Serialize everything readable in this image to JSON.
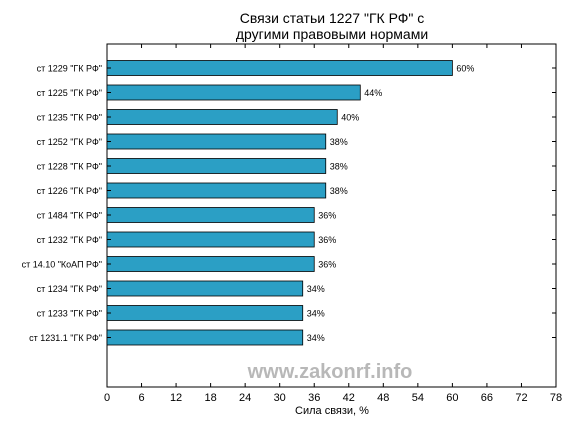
{
  "chart_data": {
    "type": "bar",
    "orientation": "horizontal",
    "title_lines": [
      "Связи статьи 1227 \"ГК РФ\" с",
      "другими правовыми нормами"
    ],
    "xlabel": "Сила связи, %",
    "ylabel": "",
    "xlim": [
      0,
      78
    ],
    "xticks": [
      "0",
      "6",
      "12",
      "18",
      "24",
      "30",
      "36",
      "42",
      "48",
      "54",
      "60",
      "66",
      "72",
      "78"
    ],
    "grid": false,
    "bar_color": "#2b9fc5",
    "categories": [
      "ст 1229 \"ГК РФ\"",
      "ст 1225 \"ГК РФ\"",
      "ст 1235 \"ГК РФ\"",
      "ст 1252 \"ГК РФ\"",
      "ст 1228 \"ГК РФ\"",
      "ст 1226 \"ГК РФ\"",
      "ст 1484 \"ГК РФ\"",
      "ст 1232 \"ГК РФ\"",
      "ст 14.10 \"КоАП РФ\"",
      "ст 1234 \"ГК РФ\"",
      "ст 1233 \"ГК РФ\"",
      "ст 1231.1 \"ГК РФ\""
    ],
    "values": [
      60,
      44,
      40,
      38,
      38,
      38,
      36,
      36,
      36,
      34,
      34,
      34
    ],
    "value_labels": [
      "60%",
      "44%",
      "40%",
      "38%",
      "38%",
      "38%",
      "36%",
      "36%",
      "36%",
      "34%",
      "34%",
      "34%"
    ]
  },
  "watermark": "www.zakonrf.info"
}
